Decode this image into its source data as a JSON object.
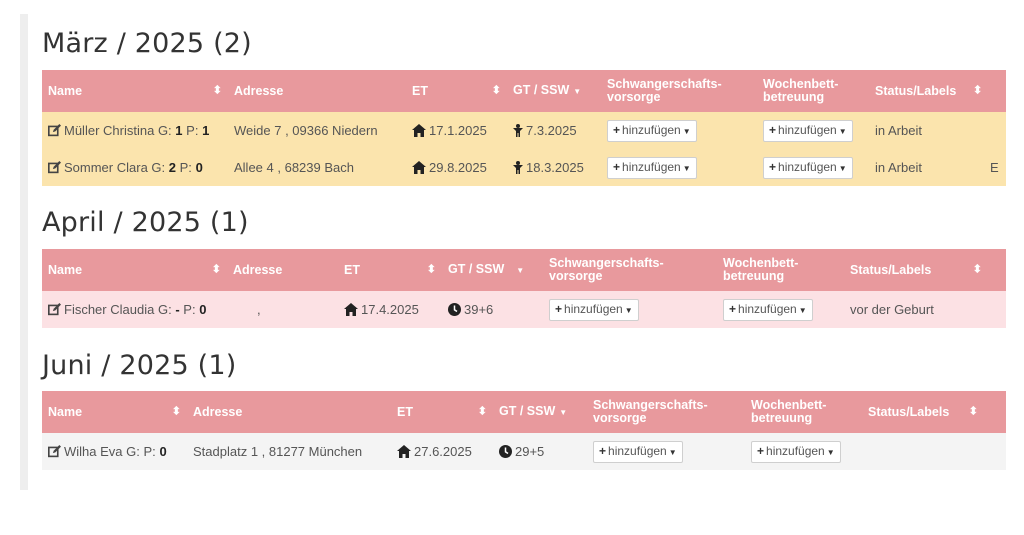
{
  "common": {
    "add_label": "hinzufügen",
    "headers": {
      "name": "Name",
      "address": "Adresse",
      "et": "ET",
      "gt_ssw": "GT / SSW",
      "schwanger_1": "Schwangerschafts-",
      "schwanger_2": "vorsorge",
      "wochen_1": "Wochenbett-",
      "wochen_2": "betreuung",
      "status": "Status/Labels"
    }
  },
  "groups": [
    {
      "title": "März / 2025 (2)",
      "rows": [
        {
          "name": "Müller Christina",
          "g_label": "G:",
          "g": "1",
          "p_label": "P:",
          "p": "1",
          "address": "Weide 7 , 09366 Niedern",
          "et": "17.1.2025",
          "gt_icon": "child-icon",
          "gt": "7.3.2025",
          "status": "in Arbeit",
          "extra": ""
        },
        {
          "name": "Sommer Clara",
          "g_label": "G:",
          "g": "2",
          "p_label": "P:",
          "p": "0",
          "address": "Allee 4 , 68239 Bach",
          "et": "29.8.2025",
          "gt_icon": "child-icon",
          "gt": "18.3.2025",
          "status": "in Arbeit",
          "extra": "E"
        }
      ]
    },
    {
      "title": "April / 2025 (1)",
      "rows": [
        {
          "name": "Fischer Claudia",
          "g_label": "G:",
          "g": "-",
          "p_label": "P:",
          "p": "0",
          "address": ",",
          "et": "17.4.2025",
          "gt_icon": "clock-icon",
          "gt": "39+6",
          "status": "vor der Geburt",
          "extra": ""
        }
      ]
    },
    {
      "title": "Juni / 2025 (1)",
      "rows": [
        {
          "name": "Wilha Eva",
          "g_label": "G:",
          "g": "",
          "p_label": "P:",
          "p": "0",
          "address": "Stadplatz 1 , 81277 München",
          "et": "27.6.2025",
          "gt_icon": "clock-icon",
          "gt": "29+5",
          "status": "",
          "extra": ""
        }
      ]
    }
  ]
}
